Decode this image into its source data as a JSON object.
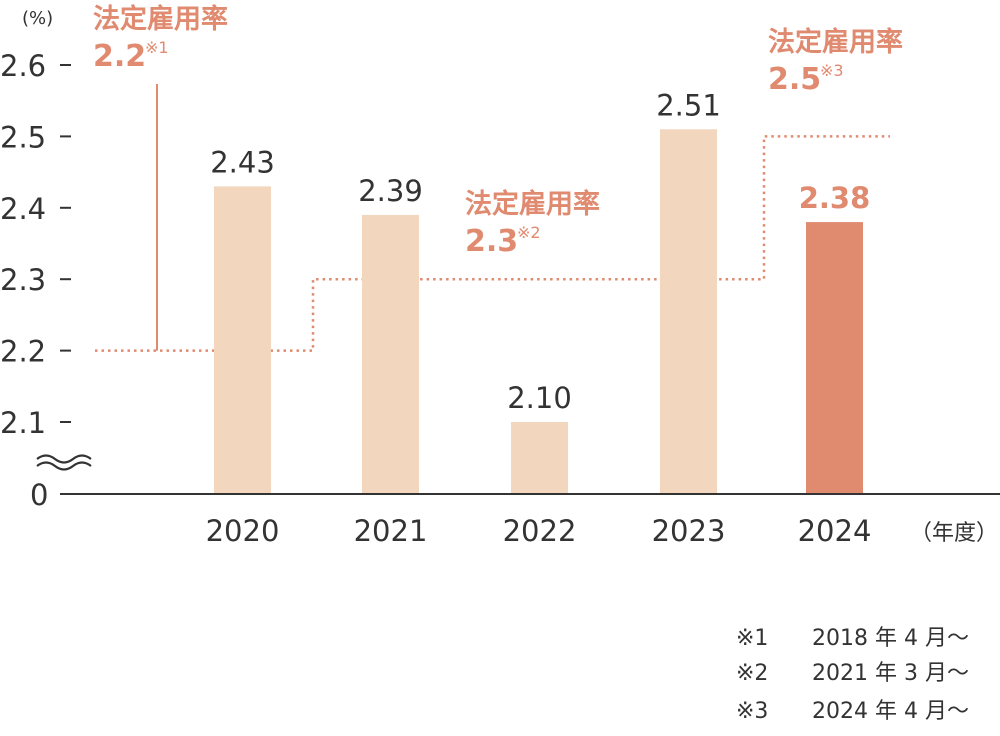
{
  "chart_data": {
    "type": "bar",
    "y_unit_label": "(%)",
    "x_unit_label": "（年度）",
    "categories": [
      "2020",
      "2021",
      "2022",
      "2023",
      "2024"
    ],
    "values": [
      2.43,
      2.39,
      2.1,
      2.51,
      2.38
    ],
    "value_labels": [
      "2.43",
      "2.39",
      "2.10",
      "2.51",
      "2.38"
    ],
    "highlight_index": 4,
    "y_ticks": [
      {
        "value": 2.6,
        "label": "2.6"
      },
      {
        "value": 2.5,
        "label": "2.5"
      },
      {
        "value": 2.4,
        "label": "2.4"
      },
      {
        "value": 2.3,
        "label": "2.3"
      },
      {
        "value": 2.2,
        "label": "2.2"
      },
      {
        "value": 2.1,
        "label": "2.1"
      }
    ],
    "y_zero_label": "0",
    "ylim": [
      2.05,
      2.6
    ],
    "axis_break": true,
    "legal_rate_steps": [
      {
        "value": 2.2,
        "title": "法定雇用率",
        "rate": "2.2",
        "note": "※1"
      },
      {
        "value": 2.3,
        "title": "法定雇用率",
        "rate": "2.3",
        "note": "※2"
      },
      {
        "value": 2.5,
        "title": "法定雇用率",
        "rate": "2.5",
        "note": "※3"
      }
    ],
    "footnotes": [
      {
        "mark": "※1",
        "text": "2018 年 4 月～"
      },
      {
        "mark": "※2",
        "text": "2021 年 3 月～"
      },
      {
        "mark": "※3",
        "text": "2024 年 4 月～"
      }
    ]
  },
  "colors": {
    "bar": "#f3d6be",
    "bar_highlight": "#e08a70",
    "accent": "#e08a70",
    "text": "#333333",
    "axis": "#333333"
  }
}
